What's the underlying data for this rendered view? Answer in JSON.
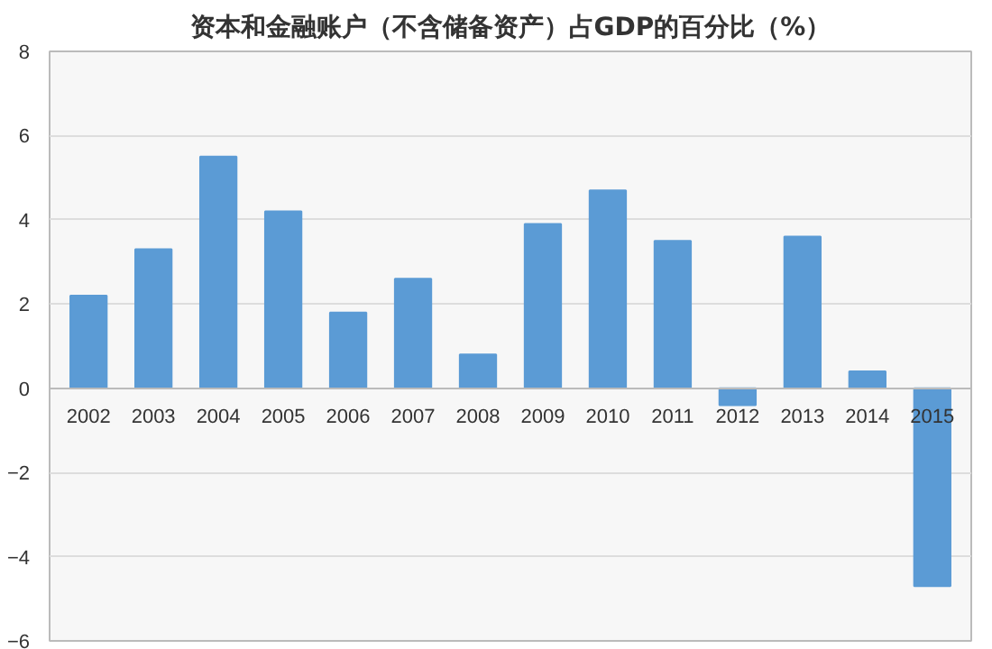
{
  "chart_data": {
    "type": "bar",
    "title": "资本和金融账户（不含储备资产）占GDP的百分比（%）",
    "categories": [
      "2002",
      "2003",
      "2004",
      "2005",
      "2006",
      "2007",
      "2008",
      "2009",
      "2010",
      "2011",
      "2012",
      "2013",
      "2014",
      "2015"
    ],
    "values": [
      2.2,
      3.3,
      5.5,
      4.2,
      1.8,
      2.6,
      0.8,
      3.9,
      4.7,
      3.5,
      -0.4,
      3.6,
      0.4,
      -4.7
    ],
    "color": "#5b9bd5",
    "ylim": [
      -6,
      8
    ],
    "yticks": [
      -6,
      -4,
      -2,
      0,
      2,
      4,
      6,
      8
    ],
    "grid": "y"
  }
}
